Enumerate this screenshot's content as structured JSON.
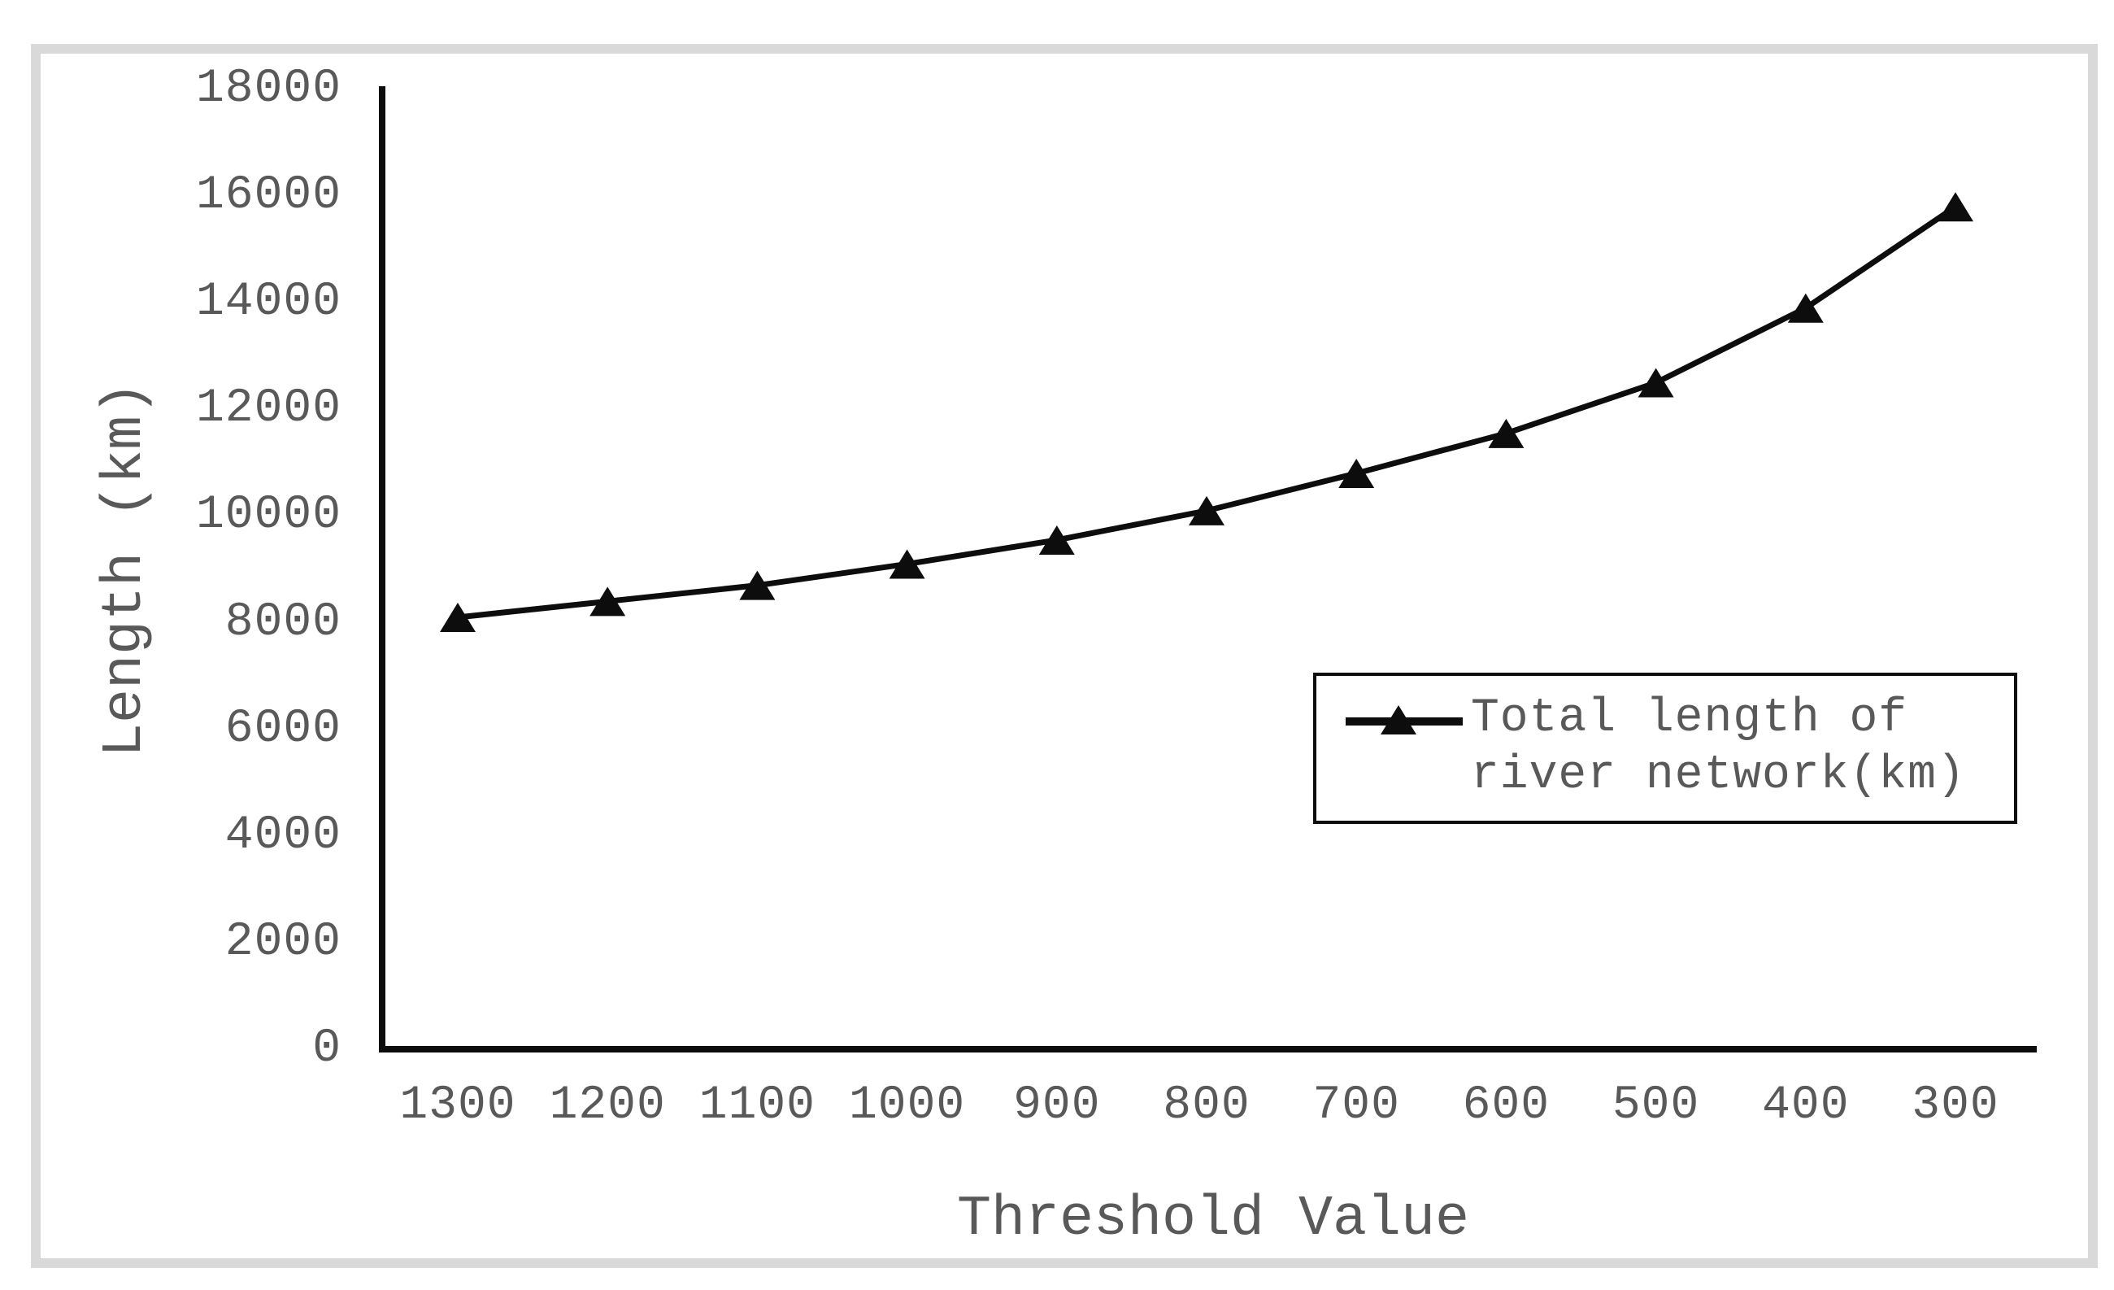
{
  "chart_data": {
    "type": "line",
    "title": "",
    "xlabel": "Threshold Value",
    "ylabel": "Length (km)",
    "categories": [
      1300,
      1200,
      1100,
      1000,
      900,
      800,
      700,
      600,
      500,
      400,
      300
    ],
    "series": [
      {
        "name": "Total length of river network(km)",
        "values": [
          8100,
          8400,
          8700,
          9100,
          9550,
          10100,
          10800,
          11550,
          12500,
          13900,
          15800
        ]
      }
    ],
    "legend_label_lines": [
      "Total length of",
      "river network(km)"
    ],
    "yticks": [
      0,
      2000,
      4000,
      6000,
      8000,
      10000,
      12000,
      14000,
      16000,
      18000
    ],
    "ylim": [
      0,
      18000
    ],
    "grid": false,
    "legend_position": "middle-right",
    "marker": "triangle-up",
    "line_color": "#0d0d0d",
    "axis_color": "#0d0d0d",
    "text_color": "#595959",
    "frame_border_color": "#d9d9d9",
    "legend_border_color": "#0d0d0d",
    "background_color": "#ffffff"
  }
}
